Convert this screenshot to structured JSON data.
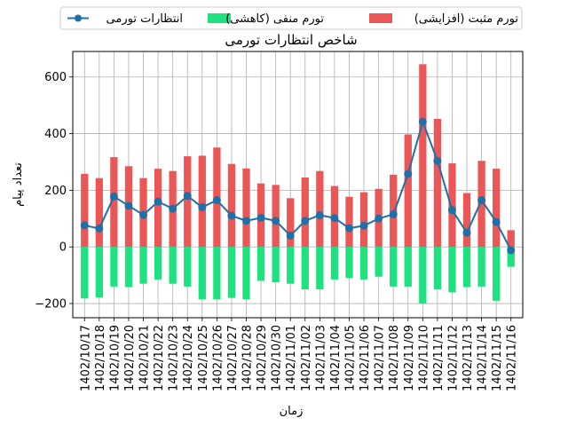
{
  "chart_data": {
    "type": "bar",
    "title": "شاخص انتظارات تورمی",
    "xlabel": "زمان",
    "ylabel": "تعداد پیام",
    "ylim": [
      -250,
      690
    ],
    "yticks": [
      -200,
      0,
      200,
      400,
      600
    ],
    "grid": true,
    "legend_position": "top-center",
    "categories": [
      "1402/10/17",
      "1402/10/18",
      "1402/10/19",
      "1402/10/20",
      "1402/10/21",
      "1402/10/22",
      "1402/10/23",
      "1402/10/24",
      "1402/10/25",
      "1402/10/26",
      "1402/10/27",
      "1402/10/28",
      "1402/10/29",
      "1402/10/30",
      "1402/11/01",
      "1402/11/02",
      "1402/11/03",
      "1402/11/04",
      "1402/11/05",
      "1402/11/06",
      "1402/11/07",
      "1402/11/08",
      "1402/11/09",
      "1402/11/10",
      "1402/11/11",
      "1402/11/12",
      "1402/11/13",
      "1402/11/14",
      "1402/11/15",
      "1402/11/16"
    ],
    "series": [
      {
        "name": "تورم مثبت (افزایشی)",
        "kind": "bar",
        "color": "#eb5757",
        "values": [
          258,
          243,
          317,
          285,
          243,
          276,
          268,
          320,
          322,
          351,
          293,
          277,
          224,
          219,
          172,
          245,
          268,
          215,
          177,
          193,
          205,
          255,
          397,
          645,
          452,
          295,
          190,
          304,
          276,
          59
        ]
      },
      {
        "name": "تورم منفی (کاهشی)",
        "kind": "bar",
        "color": "#1de27f",
        "values": [
          -182,
          -178,
          -140,
          -142,
          -130,
          -115,
          -130,
          -140,
          -185,
          -185,
          -180,
          -185,
          -120,
          -125,
          -130,
          -150,
          -150,
          -115,
          -110,
          -115,
          -105,
          -140,
          -140,
          -200,
          -150,
          -160,
          -142,
          -140,
          -190,
          -70
        ]
      },
      {
        "name": "انتظارات تورمی",
        "kind": "line",
        "color": "#1f6fa8",
        "values": [
          76,
          65,
          178,
          145,
          113,
          160,
          135,
          180,
          140,
          165,
          110,
          92,
          103,
          92,
          40,
          92,
          112,
          102,
          66,
          75,
          100,
          115,
          258,
          442,
          304,
          130,
          50,
          165,
          88,
          -12
        ]
      }
    ]
  }
}
